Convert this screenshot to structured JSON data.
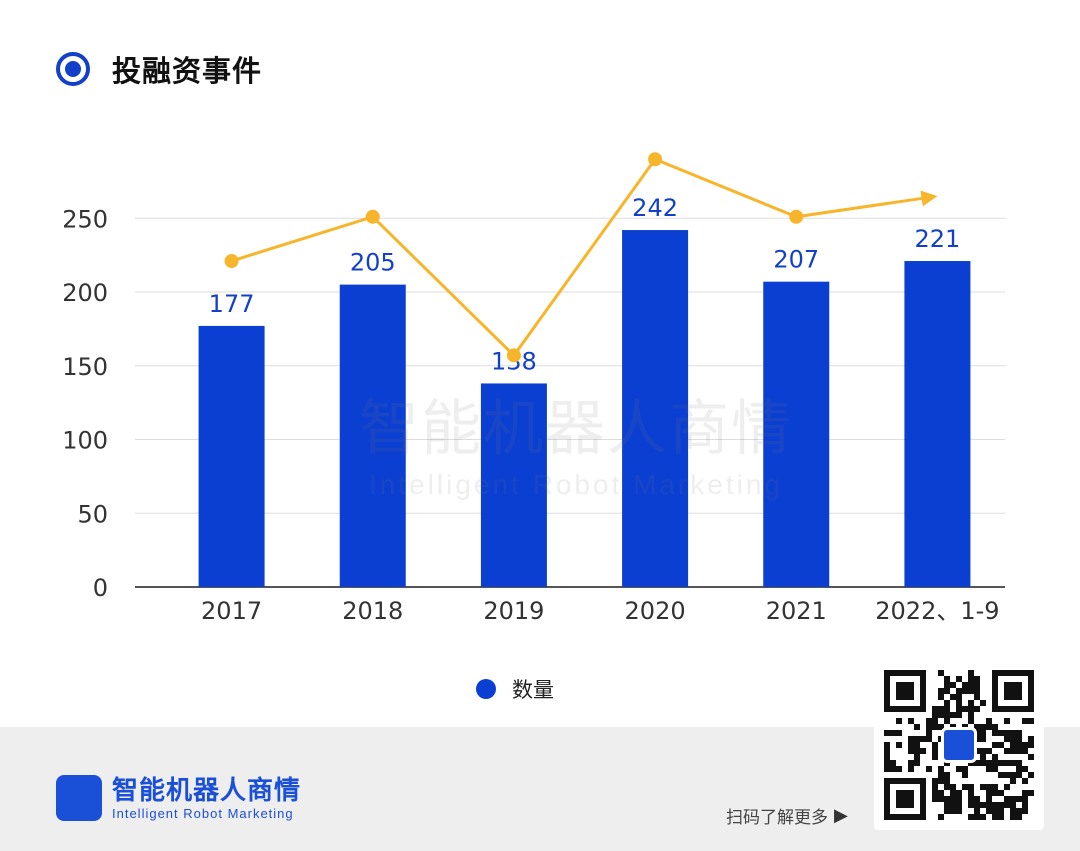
{
  "header": {
    "title": "投融资事件"
  },
  "chart_data": {
    "type": "bar",
    "categories": [
      "2017",
      "2018",
      "2019",
      "2020",
      "2021",
      "2022、1-9"
    ],
    "series": [
      {
        "name": "数量",
        "type": "bar",
        "color": "#0b3fd1",
        "values": [
          177,
          205,
          138,
          242,
          207,
          221
        ]
      },
      {
        "type": "line",
        "color": "#f7b52c",
        "values": [
          221,
          251,
          157,
          290,
          251,
          265
        ]
      }
    ],
    "ylim": [
      0,
      300
    ],
    "yticks": [
      0,
      50,
      100,
      150,
      200,
      250
    ],
    "grid": true,
    "legend": {
      "position": "bottom",
      "entries": [
        "数量"
      ]
    }
  },
  "watermark": {
    "cn": "智能机器人商情",
    "en": "Intelligent Robot Marketing"
  },
  "footer": {
    "brand_cn": "智能机器人商情",
    "brand_en": "Intelligent Robot Marketing",
    "scan_text": "扫码了解更多",
    "bg_color": "#eeeeee"
  }
}
